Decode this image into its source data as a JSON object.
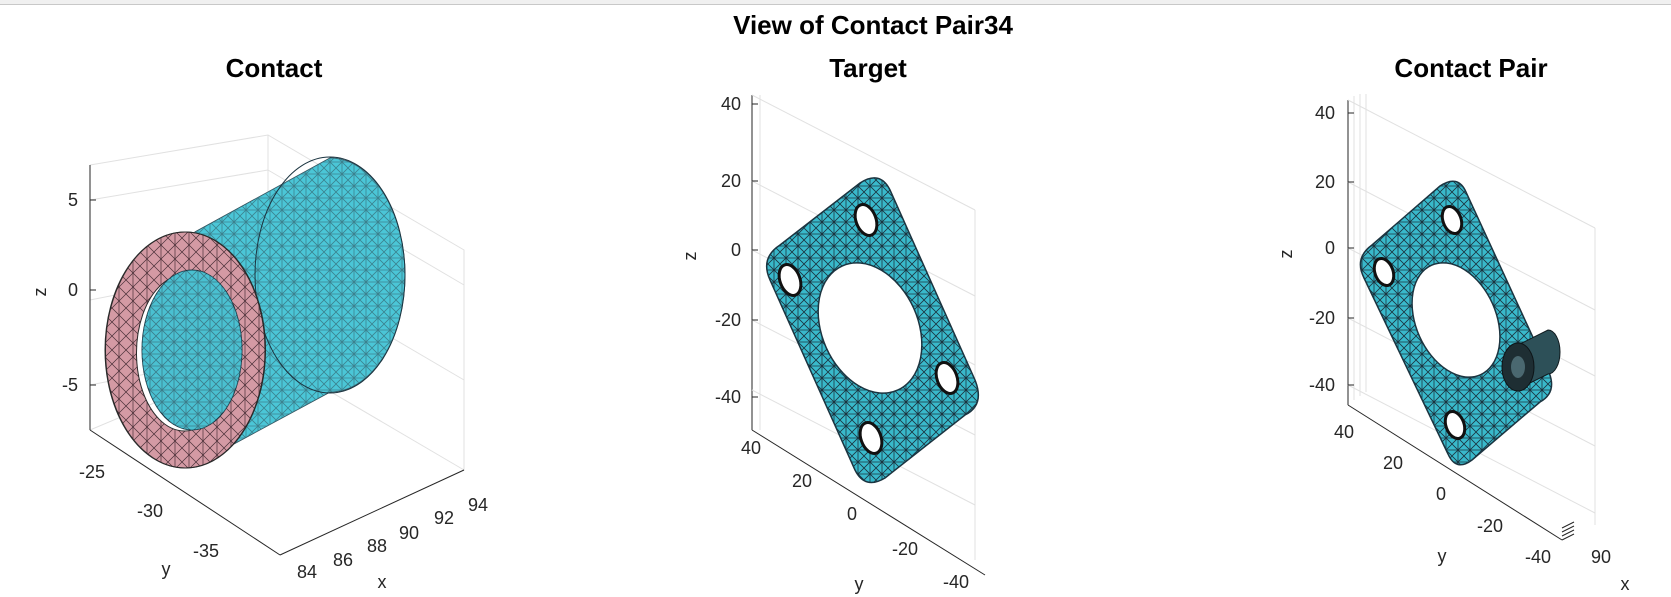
{
  "figure": {
    "title": "View of Contact Pair34"
  },
  "panels": [
    {
      "title": "Contact",
      "xlabel": "x",
      "ylabel": "y",
      "zlabel": "z",
      "x_ticks": [
        "84",
        "86",
        "88",
        "90",
        "92",
        "94"
      ],
      "y_ticks": [
        "-25",
        "-30",
        "-35"
      ],
      "z_ticks": [
        "5",
        "0",
        "-5"
      ]
    },
    {
      "title": "Target",
      "xlabel": "",
      "ylabel": "y",
      "zlabel": "z",
      "x_ticks": [],
      "y_ticks": [
        "40",
        "20",
        "0",
        "-20",
        "-40"
      ],
      "z_ticks": [
        "40",
        "20",
        "0",
        "-20",
        "-40"
      ]
    },
    {
      "title": "Contact Pair",
      "xlabel": "x",
      "ylabel": "y",
      "zlabel": "z",
      "x_ticks": [
        "90"
      ],
      "y_ticks": [
        "40",
        "20",
        "0",
        "-20",
        "-40"
      ],
      "z_ticks": [
        "40",
        "20",
        "0",
        "-20",
        "-40"
      ]
    }
  ],
  "colors": {
    "mesh_face": "#3fc6d8",
    "mesh_edge": "#1d3b45",
    "contact_face": "#d49aa4",
    "background": "#ffffff"
  }
}
